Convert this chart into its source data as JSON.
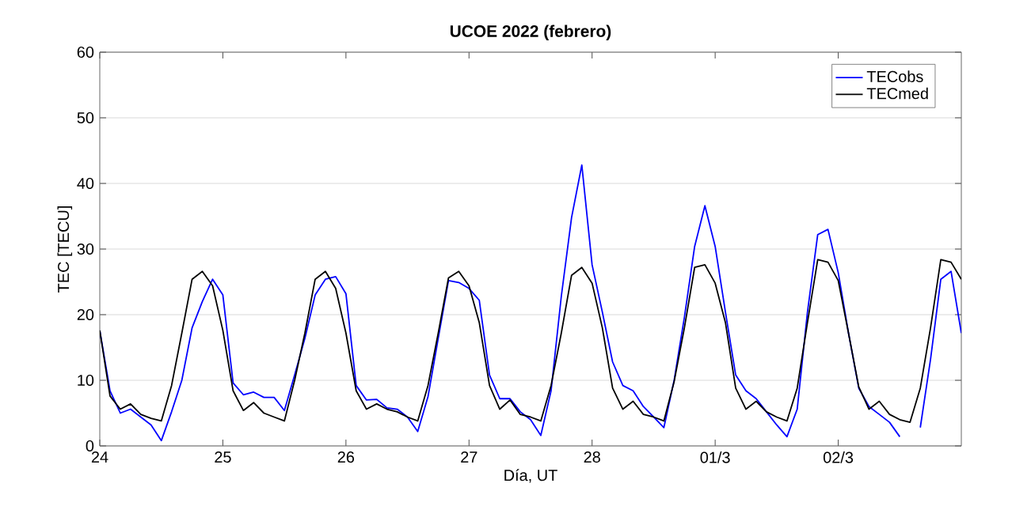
{
  "chart_data": {
    "type": "line",
    "title": "UCOE 2022 (febrero)",
    "xlabel": "Día, UT",
    "ylabel": "TEC [TECU]",
    "x": [
      "2022-02-24T00:00",
      "2022-02-24T02:00",
      "2022-02-24T04:00",
      "2022-02-24T06:00",
      "2022-02-24T08:00",
      "2022-02-24T10:00",
      "2022-02-24T12:00",
      "2022-02-24T14:00",
      "2022-02-24T16:00",
      "2022-02-24T18:00",
      "2022-02-24T20:00",
      "2022-02-24T22:00",
      "2022-02-25T00:00",
      "2022-02-25T02:00",
      "2022-02-25T04:00",
      "2022-02-25T06:00",
      "2022-02-25T08:00",
      "2022-02-25T10:00",
      "2022-02-25T12:00",
      "2022-02-25T14:00",
      "2022-02-25T16:00",
      "2022-02-25T18:00",
      "2022-02-25T20:00",
      "2022-02-25T22:00",
      "2022-02-26T00:00",
      "2022-02-26T02:00",
      "2022-02-26T04:00",
      "2022-02-26T06:00",
      "2022-02-26T08:00",
      "2022-02-26T10:00",
      "2022-02-26T12:00",
      "2022-02-26T14:00",
      "2022-02-26T16:00",
      "2022-02-26T18:00",
      "2022-02-26T20:00",
      "2022-02-26T22:00",
      "2022-02-27T00:00",
      "2022-02-27T02:00",
      "2022-02-27T04:00",
      "2022-02-27T06:00",
      "2022-02-27T08:00",
      "2022-02-27T10:00",
      "2022-02-27T12:00",
      "2022-02-27T14:00",
      "2022-02-27T16:00",
      "2022-02-27T18:00",
      "2022-02-27T20:00",
      "2022-02-27T22:00",
      "2022-02-28T00:00",
      "2022-02-28T02:00",
      "2022-02-28T04:00",
      "2022-02-28T06:00",
      "2022-02-28T08:00",
      "2022-02-28T10:00",
      "2022-02-28T12:00",
      "2022-02-28T14:00",
      "2022-02-28T16:00",
      "2022-02-28T18:00",
      "2022-02-28T20:00",
      "2022-02-28T22:00",
      "2022-03-01T00:00",
      "2022-03-01T02:00",
      "2022-03-01T04:00",
      "2022-03-01T06:00",
      "2022-03-01T08:00",
      "2022-03-01T10:00",
      "2022-03-01T12:00",
      "2022-03-01T14:00",
      "2022-03-01T16:00",
      "2022-03-01T18:00",
      "2022-03-01T20:00",
      "2022-03-01T22:00",
      "2022-03-02T00:00",
      "2022-03-02T02:00",
      "2022-03-02T04:00",
      "2022-03-02T06:00",
      "2022-03-02T08:00",
      "2022-03-02T10:00",
      "2022-03-02T12:00",
      "2022-03-02T14:00",
      "2022-03-02T16:00",
      "2022-03-02T18:00",
      "2022-03-02T20:00",
      "2022-03-02T22:00",
      "2022-03-03T00:00"
    ],
    "series": [
      {
        "name": "TECobs",
        "color": "#0000ff",
        "values": [
          17.6,
          8.4,
          5,
          5.6,
          4.4,
          3.2,
          0.8,
          5.2,
          10,
          18,
          22,
          25.4,
          23,
          9.6,
          7.8,
          8.2,
          7.4,
          7.4,
          5.4,
          10.8,
          16.4,
          23,
          25.4,
          25.8,
          23.2,
          9.2,
          7,
          7.1,
          5.8,
          5.6,
          4.4,
          2.2,
          7.5,
          16.4,
          25.2,
          24.9,
          24,
          22.2,
          10.8,
          7.2,
          7.2,
          5.2,
          4,
          1.6,
          8.4,
          22.8,
          34.8,
          42.8,
          27.6,
          20.4,
          12.8,
          9.2,
          8.4,
          6,
          4.4,
          2.8,
          10,
          19.6,
          30.4,
          36.6,
          30.4,
          20.4,
          10.8,
          8.4,
          7.2,
          5.2,
          3.2,
          1.4,
          5.6,
          20.4,
          32.2,
          33,
          26.4,
          17.2,
          8.8,
          6,
          4.8,
          3.6,
          1.4,
          null,
          2.8,
          13.2,
          25.4,
          26.6,
          17.2
        ]
      },
      {
        "name": "TECmed",
        "color": "#000000",
        "values": [
          17.6,
          7.6,
          5.6,
          6.4,
          4.8,
          4.2,
          3.8,
          9.2,
          17.2,
          25.4,
          26.6,
          24.4,
          17.6,
          8.4,
          5.4,
          6.6,
          5,
          4.4,
          3.8,
          10,
          17.2,
          25.4,
          26.6,
          24,
          17.2,
          8.4,
          5.6,
          6.4,
          5.6,
          5.2,
          4.4,
          3.8,
          9.2,
          17.2,
          25.6,
          26.6,
          24.4,
          18.8,
          9.2,
          5.6,
          7,
          4.8,
          4.4,
          3.8,
          9.2,
          17.2,
          26,
          27.2,
          24.8,
          18,
          8.8,
          5.6,
          6.8,
          4.8,
          4.4,
          3.8,
          9.8,
          18,
          27.2,
          27.6,
          24.8,
          18.8,
          8.8,
          5.6,
          6.8,
          5.2,
          4.4,
          3.8,
          8.8,
          18.8,
          28.4,
          28,
          25.2,
          17.2,
          9,
          5.6,
          6.8,
          4.8,
          4,
          3.6,
          8.8,
          18,
          28.4,
          28,
          25.4
        ]
      }
    ],
    "xlim": [
      "2022-02-24",
      "2022-03-03"
    ],
    "xticks": [
      {
        "value": "2022-02-24",
        "label": "24"
      },
      {
        "value": "2022-02-25",
        "label": "25"
      },
      {
        "value": "2022-02-26",
        "label": "26"
      },
      {
        "value": "2022-02-27",
        "label": "27"
      },
      {
        "value": "2022-02-28",
        "label": "28"
      },
      {
        "value": "2022-03-01",
        "label": "01/3"
      },
      {
        "value": "2022-03-02",
        "label": "02/3"
      }
    ],
    "ylim": [
      0,
      60
    ],
    "yticks": [
      0,
      10,
      20,
      30,
      40,
      50,
      60
    ],
    "grid": "y",
    "legend": "top right",
    "marker": "none",
    "line_style": "solid"
  }
}
